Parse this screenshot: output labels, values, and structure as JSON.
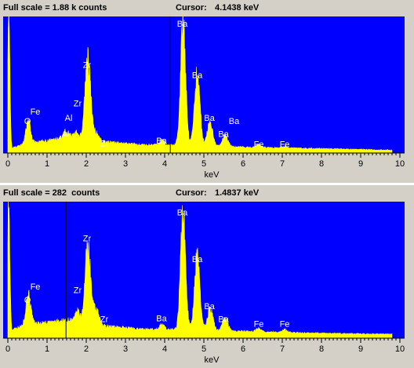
{
  "colors": {
    "plot_bg": "#0000ff",
    "spectrum": "#ffff00",
    "label": "#ffffff",
    "cursor": "#000000",
    "window_bg": "#d4d0c8"
  },
  "panels": [
    {
      "full_scale_label": "Full scale = 1.88 k counts",
      "cursor_label": "Cursor:",
      "cursor_value_text": "4.1438 keV",
      "cursor_kev": 4.1438
    },
    {
      "full_scale_label": "Full scale = 282  counts",
      "cursor_label": "Cursor:",
      "cursor_value_text": "1.4837 keV",
      "cursor_kev": 1.4837
    }
  ],
  "chart_data": [
    {
      "type": "area",
      "xlabel": "keV",
      "xlim": [
        0,
        10
      ],
      "ylim": [
        0,
        1880
      ],
      "x_ticks": [
        "0",
        "1",
        "2",
        "3",
        "4",
        "5",
        "6",
        "7",
        "8",
        "9",
        "10"
      ],
      "peaks": [
        {
          "kev": 0.02,
          "height": 1880,
          "width": 0.03
        },
        {
          "kev": 0.52,
          "height": 300,
          "width": 0.06
        },
        {
          "kev": 1.48,
          "height": 90,
          "width": 0.06
        },
        {
          "kev": 1.75,
          "height": 60,
          "width": 0.05
        },
        {
          "kev": 2.04,
          "height": 1110,
          "width": 0.07
        },
        {
          "kev": 2.25,
          "height": 100,
          "width": 0.07
        },
        {
          "kev": 3.93,
          "height": 60,
          "width": 0.06
        },
        {
          "kev": 4.47,
          "height": 1700,
          "width": 0.065
        },
        {
          "kev": 4.83,
          "height": 1000,
          "width": 0.07
        },
        {
          "kev": 5.16,
          "height": 330,
          "width": 0.07
        },
        {
          "kev": 5.54,
          "height": 150,
          "width": 0.07
        },
        {
          "kev": 6.4,
          "height": 40,
          "width": 0.06
        },
        {
          "kev": 7.06,
          "height": 25,
          "width": 0.06
        }
      ],
      "background": [
        [
          0.15,
          80
        ],
        [
          0.6,
          140
        ],
        [
          1.0,
          170
        ],
        [
          1.6,
          230
        ],
        [
          2.5,
          150
        ],
        [
          3.5,
          110
        ],
        [
          4.2,
          110
        ],
        [
          6.0,
          80
        ],
        [
          8.0,
          60
        ],
        [
          9.8,
          40
        ]
      ],
      "annotations": [
        {
          "text": "O",
          "kev": 0.5,
          "counts": 380
        },
        {
          "text": "Fe",
          "kev": 0.7,
          "counts": 510
        },
        {
          "text": "Al",
          "kev": 1.47,
          "counts": 200
        },
        {
          "text": "Al",
          "kev": 1.55,
          "counts": 420
        },
        {
          "text": "Zr",
          "kev": 1.78,
          "counts": 620
        },
        {
          "text": "Zr",
          "kev": 2.02,
          "counts": 1150
        },
        {
          "text": "Zr",
          "kev": 2.46,
          "counts": 70
        },
        {
          "text": "Ba",
          "kev": 3.92,
          "counts": 110
        },
        {
          "text": "Ba",
          "kev": 4.45,
          "counts": 1720
        },
        {
          "text": "Ba",
          "kev": 4.83,
          "counts": 1010
        },
        {
          "text": "Ba",
          "kev": 5.14,
          "counts": 420
        },
        {
          "text": "Ba",
          "kev": 5.77,
          "counts": 380
        },
        {
          "text": "Ba",
          "kev": 5.5,
          "counts": 200
        },
        {
          "text": "Fe",
          "kev": 6.4,
          "counts": 60
        },
        {
          "text": "Fe",
          "kev": 7.06,
          "counts": 60
        }
      ]
    },
    {
      "type": "area",
      "xlabel": "keV",
      "xlim": [
        0,
        10
      ],
      "ylim": [
        0,
        282
      ],
      "x_ticks": [
        "0",
        "1",
        "2",
        "3",
        "4",
        "5",
        "6",
        "7",
        "8",
        "9",
        "10"
      ],
      "peaks": [
        {
          "kev": 0.02,
          "height": 282,
          "width": 0.03
        },
        {
          "kev": 0.52,
          "height": 65,
          "width": 0.06
        },
        {
          "kev": 1.78,
          "height": 20,
          "width": 0.05
        },
        {
          "kev": 2.04,
          "height": 160,
          "width": 0.07
        },
        {
          "kev": 2.25,
          "height": 30,
          "width": 0.07
        },
        {
          "kev": 3.93,
          "height": 10,
          "width": 0.06
        },
        {
          "kev": 4.47,
          "height": 240,
          "width": 0.065
        },
        {
          "kev": 4.83,
          "height": 150,
          "width": 0.07
        },
        {
          "kev": 5.16,
          "height": 45,
          "width": 0.07
        },
        {
          "kev": 5.54,
          "height": 25,
          "width": 0.07
        },
        {
          "kev": 6.4,
          "height": 8,
          "width": 0.06
        },
        {
          "kev": 7.06,
          "height": 6,
          "width": 0.06
        }
      ],
      "background": [
        [
          0.15,
          20
        ],
        [
          0.6,
          30
        ],
        [
          1.0,
          32
        ],
        [
          1.6,
          38
        ],
        [
          2.5,
          25
        ],
        [
          3.5,
          18
        ],
        [
          4.2,
          18
        ],
        [
          6.0,
          14
        ],
        [
          8.0,
          10
        ],
        [
          9.8,
          8
        ]
      ],
      "annotations": [
        {
          "text": "O",
          "kev": 0.5,
          "counts": 70
        },
        {
          "text": "Fe",
          "kev": 0.7,
          "counts": 97
        },
        {
          "text": "Zr",
          "kev": 1.78,
          "counts": 90
        },
        {
          "text": "Zr",
          "kev": 2.02,
          "counts": 197
        },
        {
          "text": "Zr",
          "kev": 2.46,
          "counts": 30
        },
        {
          "text": "Ba",
          "kev": 3.92,
          "counts": 32
        },
        {
          "text": "Ba",
          "kev": 4.45,
          "counts": 250
        },
        {
          "text": "Ba",
          "kev": 4.83,
          "counts": 154
        },
        {
          "text": "Ba",
          "kev": 5.14,
          "counts": 57
        },
        {
          "text": "Ba",
          "kev": 5.5,
          "counts": 30
        },
        {
          "text": "Fe",
          "kev": 6.4,
          "counts": 20
        },
        {
          "text": "Fe",
          "kev": 7.06,
          "counts": 20
        }
      ]
    }
  ]
}
